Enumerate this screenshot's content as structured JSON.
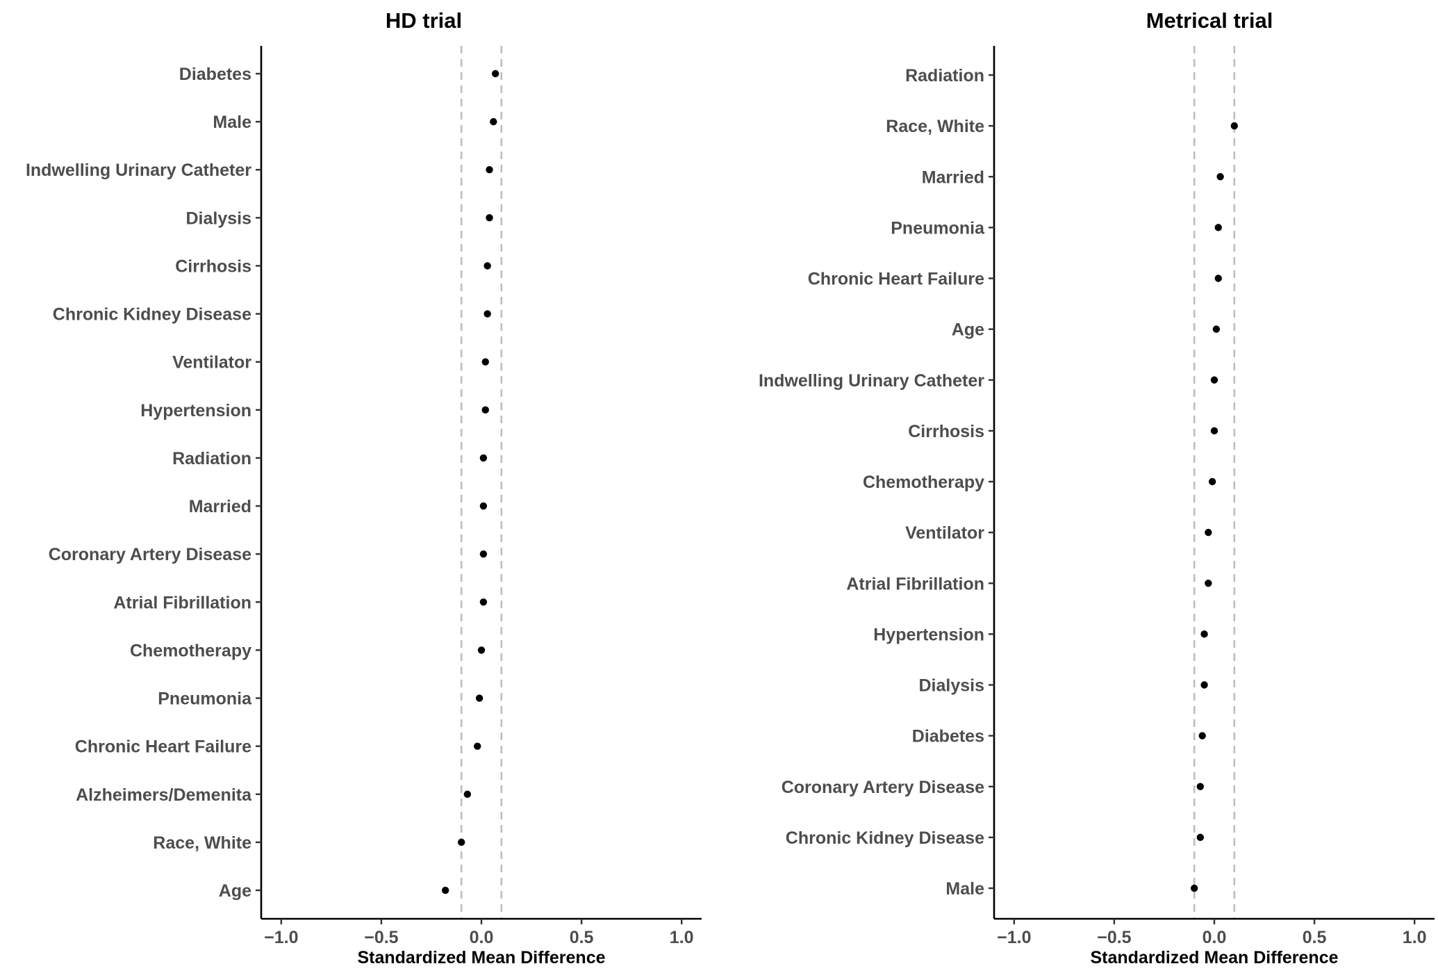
{
  "chart_data": [
    {
      "type": "scatter",
      "title": "HD trial",
      "xlabel": "Standardized Mean Difference",
      "ylabel": "",
      "xlim": [
        -1.1,
        1.1
      ],
      "xticks": [
        "−1.0",
        "−0.5",
        "0.0",
        "0.5",
        "1.0"
      ],
      "xtick_values": [
        -1.0,
        -0.5,
        0.0,
        0.5,
        1.0
      ],
      "reference_lines": [
        -0.1,
        0.1
      ],
      "grid": false,
      "legend": "none",
      "points": [
        {
          "label": "Diabetes",
          "value": 0.07
        },
        {
          "label": "Male",
          "value": 0.06
        },
        {
          "label": "Indwelling Urinary Catheter",
          "value": 0.04
        },
        {
          "label": "Dialysis",
          "value": 0.04
        },
        {
          "label": "Cirrhosis",
          "value": 0.03
        },
        {
          "label": "Chronic Kidney Disease",
          "value": 0.03
        },
        {
          "label": "Ventilator",
          "value": 0.02
        },
        {
          "label": "Hypertension",
          "value": 0.02
        },
        {
          "label": "Radiation",
          "value": 0.01
        },
        {
          "label": "Married",
          "value": 0.01
        },
        {
          "label": "Coronary Artery Disease",
          "value": 0.01
        },
        {
          "label": "Atrial Fibrillation",
          "value": 0.01
        },
        {
          "label": "Chemotherapy",
          "value": 0.0
        },
        {
          "label": "Pneumonia",
          "value": -0.01
        },
        {
          "label": "Chronic Heart Failure",
          "value": -0.02
        },
        {
          "label": "Alzheimers/Demenita",
          "value": -0.07
        },
        {
          "label": "Race, White",
          "value": -0.1
        },
        {
          "label": "Age",
          "value": -0.18
        }
      ]
    },
    {
      "type": "scatter",
      "title": "Metrical trial",
      "xlabel": "Standardized Mean Difference",
      "ylabel": "",
      "xlim": [
        -1.1,
        1.1
      ],
      "xticks": [
        "−1.0",
        "−0.5",
        "0.0",
        "0.5",
        "1.0"
      ],
      "xtick_values": [
        -1.0,
        -0.5,
        0.0,
        0.5,
        1.0
      ],
      "reference_lines": [
        -0.1,
        0.1
      ],
      "grid": false,
      "legend": "none",
      "points": [
        {
          "label": "Radiation",
          "value": null
        },
        {
          "label": "Race, White",
          "value": 0.1
        },
        {
          "label": "Married",
          "value": 0.03
        },
        {
          "label": "Pneumonia",
          "value": 0.02
        },
        {
          "label": "Chronic Heart Failure",
          "value": 0.02
        },
        {
          "label": "Age",
          "value": 0.01
        },
        {
          "label": "Indwelling Urinary Catheter",
          "value": 0.0
        },
        {
          "label": "Cirrhosis",
          "value": 0.0
        },
        {
          "label": "Chemotherapy",
          "value": -0.01
        },
        {
          "label": "Ventilator",
          "value": -0.03
        },
        {
          "label": "Atrial Fibrillation",
          "value": -0.03
        },
        {
          "label": "Hypertension",
          "value": -0.05
        },
        {
          "label": "Dialysis",
          "value": -0.05
        },
        {
          "label": "Diabetes",
          "value": -0.06
        },
        {
          "label": "Coronary Artery Disease",
          "value": -0.07
        },
        {
          "label": "Chronic Kidney Disease",
          "value": -0.07
        },
        {
          "label": "Male",
          "value": -0.1
        }
      ]
    }
  ]
}
